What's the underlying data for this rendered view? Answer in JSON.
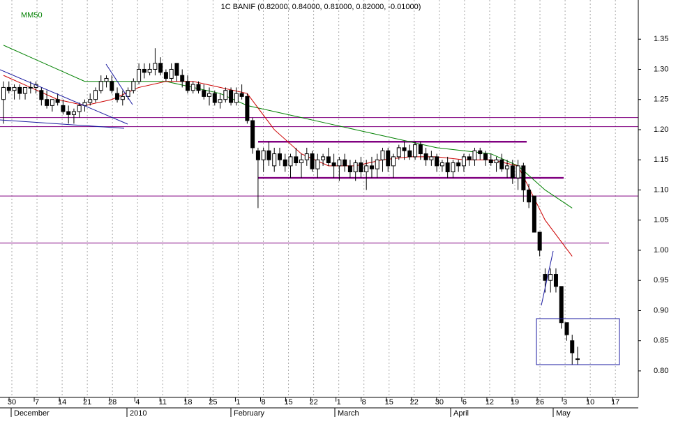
{
  "chart_data": {
    "type": "candlestick",
    "title": "1C BANIF (0.82000, 0.84000, 0.81000, 0.82000, -0.01000)",
    "ylim": [
      0.756,
      1.415
    ],
    "yticks": [
      {
        "value": 0.8,
        "label": "0.80"
      },
      0.85,
      {
        "value": 0.9,
        "label": "0.90"
      },
      0.95,
      {
        "value": 1.0,
        "label": "1.00"
      },
      1.05,
      {
        "value": 1.1,
        "label": "1.10"
      },
      1.15,
      {
        "value": 1.2,
        "label": "1.20"
      },
      1.25,
      {
        "value": 1.3,
        "label": "1.30"
      },
      1.35
    ],
    "xticks": [
      "30",
      "7",
      "14",
      "21",
      "28",
      "4",
      "11",
      "18",
      "25",
      "1",
      "8",
      "15",
      "22",
      "1",
      "8",
      "15",
      "22",
      "30",
      "6",
      "12",
      "19",
      "26",
      "3",
      "10",
      "17"
    ],
    "months": [
      "December",
      "2010",
      "February",
      "March",
      "April",
      "May"
    ],
    "grid": true,
    "up_color": "#ffffff",
    "down_color": "#000000",
    "ohlc": [
      [
        1.25,
        1.28,
        1.21,
        1.27
      ],
      [
        1.27,
        1.28,
        1.26,
        1.265
      ],
      [
        1.265,
        1.275,
        1.25,
        1.27
      ],
      [
        1.27,
        1.275,
        1.25,
        1.26
      ],
      [
        1.26,
        1.27,
        1.25,
        1.27
      ],
      [
        1.27,
        1.28,
        1.26,
        1.27
      ],
      [
        1.27,
        1.28,
        1.26,
        1.275
      ],
      [
        1.265,
        1.27,
        1.24,
        1.25
      ],
      [
        1.25,
        1.265,
        1.235,
        1.24
      ],
      [
        1.24,
        1.25,
        1.23,
        1.25
      ],
      [
        1.25,
        1.26,
        1.24,
        1.245
      ],
      [
        1.24,
        1.25,
        1.225,
        1.23
      ],
      [
        1.23,
        1.24,
        1.21,
        1.225
      ],
      [
        1.225,
        1.235,
        1.21,
        1.23
      ],
      [
        1.23,
        1.245,
        1.22,
        1.24
      ],
      [
        1.24,
        1.25,
        1.23,
        1.245
      ],
      [
        1.245,
        1.26,
        1.24,
        1.25
      ],
      [
        1.25,
        1.27,
        1.245,
        1.265
      ],
      [
        1.265,
        1.29,
        1.26,
        1.28
      ],
      [
        1.28,
        1.29,
        1.27,
        1.285
      ],
      [
        1.28,
        1.29,
        1.26,
        1.265
      ],
      [
        1.26,
        1.27,
        1.245,
        1.25
      ],
      [
        1.25,
        1.265,
        1.24,
        1.255
      ],
      [
        1.255,
        1.27,
        1.25,
        1.265
      ],
      [
        1.265,
        1.285,
        1.26,
        1.28
      ],
      [
        1.28,
        1.31,
        1.275,
        1.3
      ],
      [
        1.3,
        1.31,
        1.285,
        1.295
      ],
      [
        1.295,
        1.31,
        1.29,
        1.3
      ],
      [
        1.3,
        1.335,
        1.29,
        1.31
      ],
      [
        1.31,
        1.32,
        1.29,
        1.295
      ],
      [
        1.295,
        1.3,
        1.28,
        1.285
      ],
      [
        1.285,
        1.31,
        1.28,
        1.3
      ],
      [
        1.31,
        1.31,
        1.28,
        1.29
      ],
      [
        1.29,
        1.3,
        1.27,
        1.28
      ],
      [
        1.28,
        1.29,
        1.26,
        1.265
      ],
      [
        1.265,
        1.28,
        1.26,
        1.275
      ],
      [
        1.275,
        1.28,
        1.26,
        1.265
      ],
      [
        1.265,
        1.275,
        1.25,
        1.255
      ],
      [
        1.255,
        1.27,
        1.24,
        1.26
      ],
      [
        1.26,
        1.265,
        1.24,
        1.245
      ],
      [
        1.245,
        1.26,
        1.235,
        1.25
      ],
      [
        1.25,
        1.27,
        1.245,
        1.265
      ],
      [
        1.265,
        1.27,
        1.24,
        1.245
      ],
      [
        1.245,
        1.27,
        1.24,
        1.26
      ],
      [
        1.26,
        1.275,
        1.25,
        1.255
      ],
      [
        1.255,
        1.26,
        1.21,
        1.215
      ],
      [
        1.215,
        1.22,
        1.16,
        1.17
      ],
      [
        1.165,
        1.17,
        1.07,
        1.15
      ],
      [
        1.15,
        1.17,
        1.13,
        1.165
      ],
      [
        1.165,
        1.18,
        1.14,
        1.15
      ],
      [
        1.14,
        1.17,
        1.13,
        1.16
      ],
      [
        1.16,
        1.17,
        1.14,
        1.15
      ],
      [
        1.15,
        1.16,
        1.13,
        1.14
      ],
      [
        1.14,
        1.16,
        1.12,
        1.155
      ],
      [
        1.155,
        1.17,
        1.14,
        1.145
      ],
      [
        1.145,
        1.16,
        1.12,
        1.15
      ],
      [
        1.15,
        1.17,
        1.14,
        1.16
      ],
      [
        1.16,
        1.165,
        1.13,
        1.135
      ],
      [
        1.135,
        1.16,
        1.12,
        1.15
      ],
      [
        1.15,
        1.16,
        1.14,
        1.155
      ],
      [
        1.155,
        1.17,
        1.14,
        1.145
      ],
      [
        1.145,
        1.16,
        1.12,
        1.14
      ],
      [
        1.14,
        1.155,
        1.115,
        1.15
      ],
      [
        1.15,
        1.16,
        1.13,
        1.14
      ],
      [
        1.14,
        1.15,
        1.12,
        1.13
      ],
      [
        1.13,
        1.15,
        1.115,
        1.145
      ],
      [
        1.145,
        1.155,
        1.12,
        1.13
      ],
      [
        1.13,
        1.15,
        1.1,
        1.14
      ],
      [
        1.14,
        1.155,
        1.12,
        1.135
      ],
      [
        1.135,
        1.16,
        1.12,
        1.15
      ],
      [
        1.15,
        1.17,
        1.13,
        1.165
      ],
      [
        1.165,
        1.17,
        1.13,
        1.14
      ],
      [
        1.14,
        1.16,
        1.12,
        1.155
      ],
      [
        1.155,
        1.175,
        1.15,
        1.17
      ],
      [
        1.17,
        1.18,
        1.15,
        1.165
      ],
      [
        1.165,
        1.175,
        1.15,
        1.155
      ],
      [
        1.155,
        1.18,
        1.15,
        1.175
      ],
      [
        1.175,
        1.18,
        1.15,
        1.16
      ],
      [
        1.16,
        1.17,
        1.14,
        1.15
      ],
      [
        1.15,
        1.165,
        1.14,
        1.155
      ],
      [
        1.155,
        1.16,
        1.13,
        1.14
      ],
      [
        1.14,
        1.15,
        1.13,
        1.145
      ],
      [
        1.145,
        1.155,
        1.12,
        1.13
      ],
      [
        1.13,
        1.15,
        1.12,
        1.145
      ],
      [
        1.145,
        1.15,
        1.13,
        1.14
      ],
      [
        1.14,
        1.16,
        1.13,
        1.155
      ],
      [
        1.155,
        1.16,
        1.14,
        1.15
      ],
      [
        1.15,
        1.17,
        1.14,
        1.165
      ],
      [
        1.165,
        1.17,
        1.15,
        1.16
      ],
      [
        1.16,
        1.165,
        1.14,
        1.15
      ],
      [
        1.15,
        1.16,
        1.14,
        1.145
      ],
      [
        1.145,
        1.155,
        1.13,
        1.15
      ],
      [
        1.15,
        1.16,
        1.13,
        1.135
      ],
      [
        1.135,
        1.15,
        1.12,
        1.14
      ],
      [
        1.14,
        1.15,
        1.11,
        1.12
      ],
      [
        1.12,
        1.15,
        1.1,
        1.14
      ],
      [
        1.14,
        1.145,
        1.08,
        1.1
      ],
      [
        1.1,
        1.11,
        1.07,
        1.08
      ],
      [
        1.09,
        1.09,
        1.03,
        1.03
      ],
      [
        1.03,
        1.03,
        0.99,
        1.0
      ],
      [
        0.96,
        0.97,
        0.93,
        0.95
      ],
      [
        0.95,
        0.97,
        0.93,
        0.96
      ],
      [
        0.96,
        0.97,
        0.93,
        0.94
      ],
      [
        0.94,
        0.94,
        0.87,
        0.88
      ],
      [
        0.88,
        0.88,
        0.85,
        0.86
      ],
      [
        0.85,
        0.86,
        0.81,
        0.83
      ],
      [
        0.82,
        0.84,
        0.81,
        0.82
      ]
    ],
    "series": [
      {
        "name": "MM50",
        "color": "#008000",
        "values": [
          1.34,
          1.32,
          1.3,
          1.28,
          1.28,
          1.28,
          1.28,
          1.27,
          1.26,
          1.24,
          1.23,
          1.22,
          1.21,
          1.2,
          1.19,
          1.18,
          1.17,
          1.165,
          1.16,
          1.14,
          1.1,
          1.07
        ]
      },
      {
        "color": "#cc0000",
        "values": [
          1.29,
          1.27,
          1.25,
          1.24,
          1.25,
          1.27,
          1.28,
          1.28,
          1.27,
          1.26,
          1.2,
          1.16,
          1.14,
          1.14,
          1.15,
          1.155,
          1.155,
          1.15,
          1.15,
          1.14,
          1.05,
          0.99
        ]
      }
    ],
    "levels": [
      1.22,
      1.205,
      1.09,
      1.012
    ],
    "channel": [
      1.18,
      1.12
    ]
  }
}
